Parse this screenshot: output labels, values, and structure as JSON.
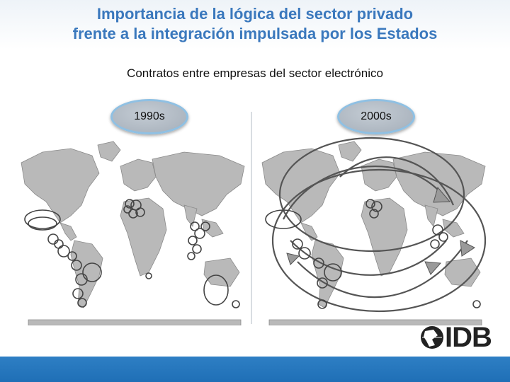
{
  "header": {
    "title_line1": "Importancia de la lógica del sector privado",
    "title_line2": "frente a la integración impulsada por los Estados",
    "subtitle": "Contratos entre empresas del sector electrónico"
  },
  "eras": [
    {
      "label": "1990s"
    },
    {
      "label": "2000s"
    }
  ],
  "logo": {
    "text": "IDB"
  },
  "colors": {
    "title": "#3a78bd",
    "bottom_bar": "#1f6fb6",
    "badge_border": "#8fc0e3"
  }
}
